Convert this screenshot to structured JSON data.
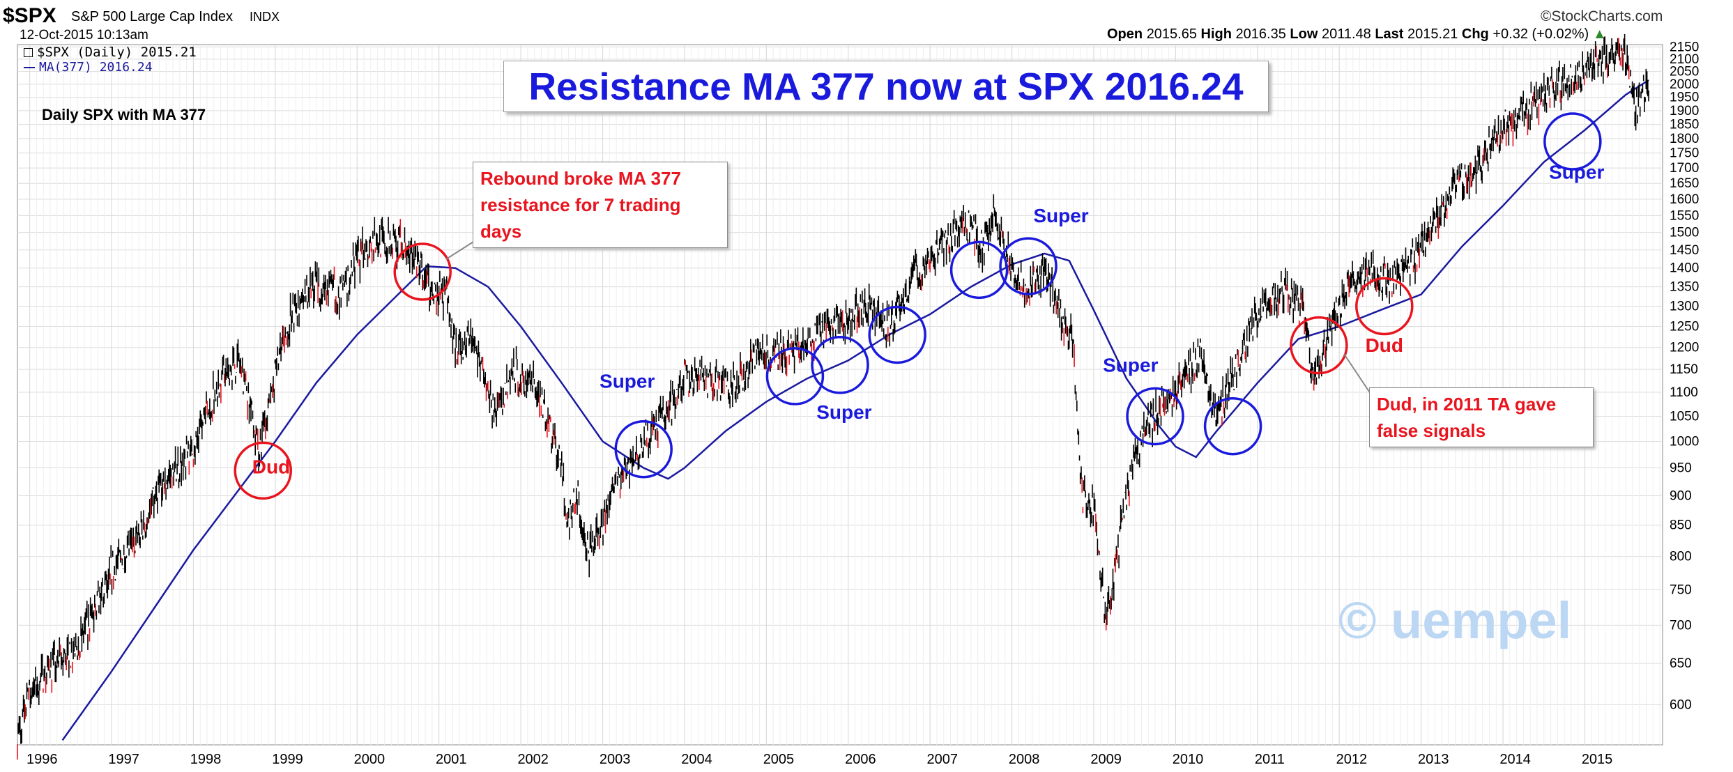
{
  "header": {
    "symbol": "$SPX",
    "name": "S&P 500 Large Cap Index",
    "exchange": "INDX",
    "datetime": "12-Oct-2015 10:13am",
    "brand": "©StockCharts.com",
    "quote": {
      "open_label": "Open",
      "open": "2015.65",
      "high_label": "High",
      "high": "2016.35",
      "low_label": "Low",
      "low": "2011.48",
      "last_label": "Last",
      "last": "2015.21",
      "chg_label": "Chg",
      "chg": "+0.32 (+0.02%)"
    }
  },
  "legend": {
    "price": "$SPX (Daily) 2015.21",
    "ma": "MA(377) 2016.24"
  },
  "notes": {
    "daily": "Daily SPX with MA 377",
    "title": "Resistance MA 377 now at SPX 2016.24",
    "callout_2000": "Rebound broke MA 377 resistance for 7 trading days",
    "callout_2011": "Dud, in 2011 TA gave false signals",
    "watermark": "© uempel"
  },
  "annotations": [
    {
      "text": "Dud",
      "color": "red",
      "date": 1998.95,
      "price": 940
    },
    {
      "text": "Super",
      "color": "blue",
      "date": 2003.3,
      "price": 1110
    },
    {
      "text": "Super",
      "color": "blue",
      "date": 2005.95,
      "price": 1045
    },
    {
      "text": "Super",
      "color": "blue",
      "date": 2008.6,
      "price": 1530
    },
    {
      "text": "Super",
      "color": "blue",
      "date": 2009.45,
      "price": 1145
    },
    {
      "text": "Dud",
      "color": "red",
      "date": 2012.55,
      "price": 1190
    },
    {
      "text": "Super",
      "color": "blue",
      "date": 2014.9,
      "price": 1665
    }
  ],
  "circles": [
    {
      "color": "red",
      "date": 1998.85,
      "price": 945
    },
    {
      "color": "red",
      "date": 2000.8,
      "price": 1390
    },
    {
      "color": "blue",
      "date": 2003.5,
      "price": 985
    },
    {
      "color": "blue",
      "date": 2005.35,
      "price": 1135
    },
    {
      "color": "blue",
      "date": 2005.9,
      "price": 1160
    },
    {
      "color": "blue",
      "date": 2006.6,
      "price": 1230
    },
    {
      "color": "blue",
      "date": 2007.6,
      "price": 1395
    },
    {
      "color": "blue",
      "date": 2008.2,
      "price": 1405
    },
    {
      "color": "blue",
      "date": 2009.75,
      "price": 1050
    },
    {
      "color": "blue",
      "date": 2010.7,
      "price": 1030
    },
    {
      "color": "red",
      "date": 2011.75,
      "price": 1205
    },
    {
      "color": "red",
      "date": 2012.55,
      "price": 1300
    },
    {
      "color": "blue",
      "date": 2014.85,
      "price": 1790
    }
  ],
  "colors": {
    "price": "#000000",
    "price_down": "#e8141e",
    "ma": "#1a1aa0",
    "grid": "#dcdcdc",
    "red": "#e8141e",
    "blue": "#1a1adc"
  },
  "chart_data": {
    "type": "line",
    "title": "Resistance MA 377 now at SPX 2016.24",
    "xlabel": "",
    "ylabel": "",
    "x_ticks": [
      "1996",
      "1997",
      "1998",
      "1999",
      "2000",
      "2001",
      "2002",
      "2003",
      "2004",
      "2005",
      "2006",
      "2007",
      "2008",
      "2009",
      "2010",
      "2011",
      "2012",
      "2013",
      "2014",
      "2015"
    ],
    "y_ticks": [
      600,
      650,
      700,
      750,
      800,
      850,
      900,
      950,
      1000,
      1050,
      1100,
      1150,
      1200,
      1250,
      1300,
      1350,
      1400,
      1450,
      1500,
      1550,
      1600,
      1650,
      1700,
      1750,
      1800,
      1850,
      1900,
      1950,
      2000,
      2050,
      2100,
      2150
    ],
    "xlim": [
      1995.85,
      2015.95
    ],
    "ylim": [
      555,
      2160
    ],
    "y_scale": "log",
    "grid": true,
    "series": [
      {
        "name": "$SPX (Daily) 2015.21",
        "x": [
          1995.85,
          1996.0,
          1996.3,
          1996.55,
          1996.8,
          1997.0,
          1997.3,
          1997.6,
          1997.85,
          1998.0,
          1998.3,
          1998.55,
          1998.7,
          1998.8,
          1998.95,
          1999.2,
          1999.5,
          1999.8,
          2000.0,
          2000.2,
          2000.5,
          2000.7,
          2000.9,
          2001.1,
          2001.2,
          2001.4,
          2001.7,
          2001.9,
          2002.2,
          2002.5,
          2002.55,
          2002.7,
          2002.8,
          2003.0,
          2003.2,
          2003.5,
          2003.8,
          2004.0,
          2004.3,
          2004.6,
          2004.9,
          2005.2,
          2005.5,
          2005.8,
          2006.0,
          2006.3,
          2006.5,
          2006.8,
          2007.0,
          2007.3,
          2007.5,
          2007.65,
          2007.8,
          2008.0,
          2008.2,
          2008.4,
          2008.6,
          2008.75,
          2008.85,
          2009.0,
          2009.15,
          2009.4,
          2009.6,
          2009.8,
          2010.0,
          2010.3,
          2010.5,
          2010.8,
          2011.0,
          2011.3,
          2011.55,
          2011.7,
          2011.9,
          2012.2,
          2012.4,
          2012.6,
          2012.9,
          2013.1,
          2013.4,
          2013.7,
          2014.0,
          2014.2,
          2014.5,
          2014.8,
          2015.0,
          2015.3,
          2015.5,
          2015.62,
          2015.68,
          2015.78
        ],
        "values": [
          560,
          615,
          650,
          665,
          720,
          780,
          820,
          920,
          960,
          980,
          1120,
          1170,
          1070,
          980,
          1100,
          1280,
          1360,
          1330,
          1420,
          1480,
          1470,
          1440,
          1330,
          1320,
          1200,
          1220,
          1050,
          1150,
          1110,
          960,
          850,
          900,
          800,
          850,
          930,
          1000,
          1060,
          1130,
          1125,
          1110,
          1190,
          1190,
          1210,
          1250,
          1270,
          1300,
          1250,
          1380,
          1420,
          1500,
          1530,
          1450,
          1550,
          1400,
          1340,
          1400,
          1280,
          1200,
          900,
          880,
          700,
          900,
          1010,
          1070,
          1100,
          1190,
          1050,
          1180,
          1280,
          1340,
          1290,
          1120,
          1250,
          1380,
          1400,
          1360,
          1420,
          1500,
          1640,
          1700,
          1840,
          1880,
          1970,
          2010,
          2060,
          2110,
          2110,
          1900,
          1960,
          2015
        ]
      },
      {
        "name": "MA(377) 2016.24",
        "x": [
          1996.4,
          1997.0,
          1997.5,
          1998.0,
          1998.5,
          1999.0,
          1999.5,
          2000.0,
          2000.5,
          2000.85,
          2001.2,
          2001.6,
          2002.0,
          2002.5,
          2003.0,
          2003.5,
          2003.8,
          2004.0,
          2004.5,
          2005.0,
          2005.5,
          2006.0,
          2006.5,
          2007.0,
          2007.5,
          2008.0,
          2008.4,
          2008.7,
          2009.0,
          2009.4,
          2009.8,
          2010.0,
          2010.25,
          2010.5,
          2011.0,
          2011.5,
          2012.0,
          2012.5,
          2013.0,
          2013.5,
          2014.0,
          2014.5,
          2015.0,
          2015.5,
          2015.78
        ],
        "values": [
          560,
          640,
          720,
          810,
          900,
          1000,
          1120,
          1230,
          1330,
          1405,
          1400,
          1350,
          1250,
          1120,
          1000,
          950,
          930,
          950,
          1020,
          1080,
          1130,
          1170,
          1230,
          1280,
          1350,
          1410,
          1440,
          1420,
          1290,
          1130,
          1030,
          990,
          970,
          1020,
          1120,
          1220,
          1250,
          1290,
          1330,
          1460,
          1580,
          1720,
          1830,
          1960,
          2016
        ]
      }
    ]
  }
}
